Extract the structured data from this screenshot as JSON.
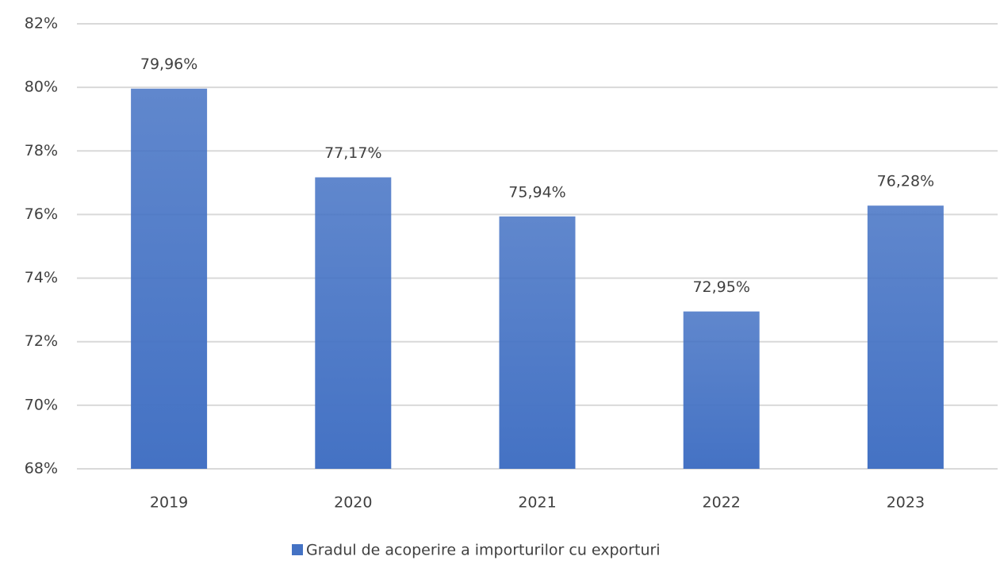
{
  "chart_data": {
    "type": "bar",
    "categories": [
      "2019",
      "2020",
      "2021",
      "2022",
      "2023"
    ],
    "series": [
      {
        "name": "Gradul de acoperire a importurilor cu exporturi",
        "color": "#4472c4",
        "values": [
          79.96,
          77.17,
          75.94,
          72.95,
          76.28
        ],
        "value_labels": [
          "79,96%",
          "77,17%",
          "75,94%",
          "72,95%",
          "76,28%"
        ]
      }
    ],
    "ylim": [
      68,
      82
    ],
    "yticks": [
      {
        "value": 68,
        "label": "68%"
      },
      {
        "value": 70,
        "label": "70%"
      },
      {
        "value": 72,
        "label": "72%"
      },
      {
        "value": 74,
        "label": "74%"
      },
      {
        "value": 76,
        "label": "76%"
      },
      {
        "value": 78,
        "label": "78%"
      },
      {
        "value": 80,
        "label": "80%"
      },
      {
        "value": 82,
        "label": "82%"
      }
    ],
    "grid": true,
    "legend": "bottom"
  }
}
